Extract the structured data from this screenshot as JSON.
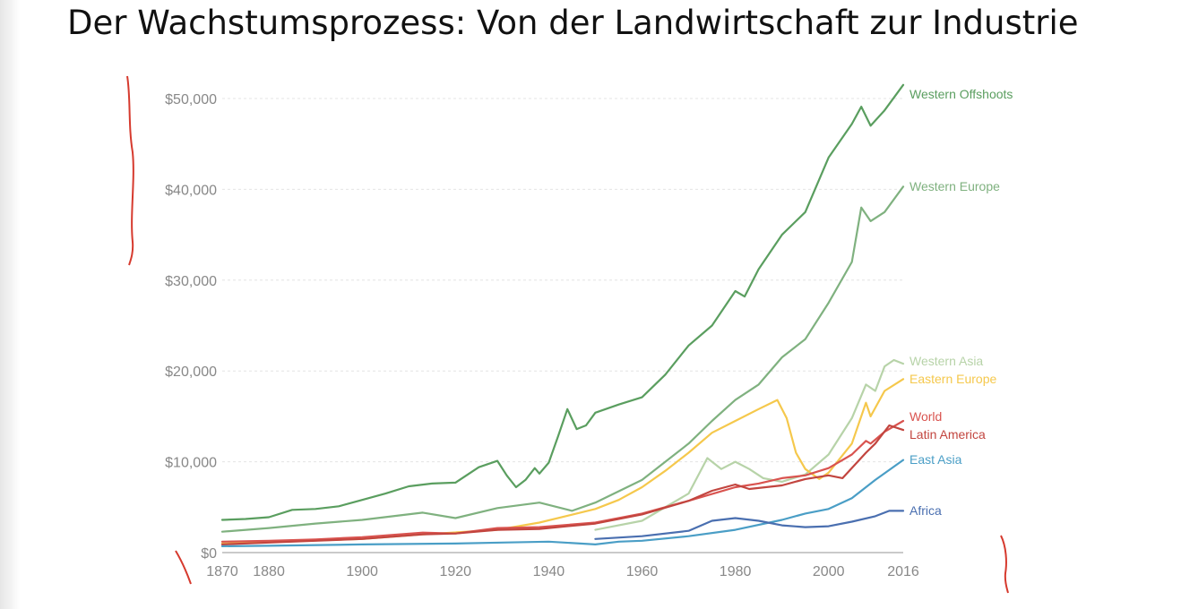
{
  "slide": {
    "title": "Der Wachstumsprozess: Von der Landwirtschaft zur Industrie"
  },
  "chart_data": {
    "type": "line",
    "title": "",
    "xlabel": "",
    "ylabel": "",
    "xlim": [
      1870,
      2016
    ],
    "ylim": [
      0,
      50000
    ],
    "grid": true,
    "legend": "inline labels at right end of each line",
    "x_ticks": [
      "1870",
      "1880",
      "1900",
      "1920",
      "1940",
      "1960",
      "1980",
      "2000",
      "2016"
    ],
    "x_tick_values": [
      1870,
      1880,
      1900,
      1920,
      1940,
      1960,
      1980,
      2000,
      2016
    ],
    "y_ticks": [
      "$0",
      "$10,000",
      "$20,000",
      "$30,000",
      "$40,000",
      "$50,000"
    ],
    "y_tick_values": [
      0,
      10000,
      20000,
      30000,
      40000,
      50000
    ],
    "series": [
      {
        "name": "Western Offshoots",
        "color": "#5a9e5f",
        "points": [
          [
            1870,
            3600
          ],
          [
            1875,
            3700
          ],
          [
            1880,
            3900
          ],
          [
            1885,
            4700
          ],
          [
            1890,
            4800
          ],
          [
            1895,
            5100
          ],
          [
            1900,
            5800
          ],
          [
            1905,
            6500
          ],
          [
            1910,
            7300
          ],
          [
            1915,
            7600
          ],
          [
            1920,
            7700
          ],
          [
            1925,
            9400
          ],
          [
            1929,
            10100
          ],
          [
            1931,
            8500
          ],
          [
            1933,
            7200
          ],
          [
            1935,
            8000
          ],
          [
            1937,
            9300
          ],
          [
            1938,
            8700
          ],
          [
            1940,
            9900
          ],
          [
            1942,
            12800
          ],
          [
            1944,
            15800
          ],
          [
            1946,
            13600
          ],
          [
            1948,
            14000
          ],
          [
            1950,
            15400
          ],
          [
            1955,
            16300
          ],
          [
            1960,
            17100
          ],
          [
            1965,
            19600
          ],
          [
            1970,
            22800
          ],
          [
            1975,
            25000
          ],
          [
            1980,
            28800
          ],
          [
            1982,
            28200
          ],
          [
            1985,
            31200
          ],
          [
            1990,
            35000
          ],
          [
            1995,
            37500
          ],
          [
            2000,
            43500
          ],
          [
            2005,
            47200
          ],
          [
            2007,
            49100
          ],
          [
            2009,
            47000
          ],
          [
            2012,
            48700
          ],
          [
            2016,
            51500
          ]
        ]
      },
      {
        "name": "Western Europe",
        "color": "#7fb17f",
        "points": [
          [
            1870,
            2300
          ],
          [
            1880,
            2700
          ],
          [
            1890,
            3200
          ],
          [
            1900,
            3600
          ],
          [
            1913,
            4400
          ],
          [
            1920,
            3800
          ],
          [
            1929,
            4900
          ],
          [
            1938,
            5500
          ],
          [
            1945,
            4600
          ],
          [
            1950,
            5500
          ],
          [
            1960,
            8000
          ],
          [
            1970,
            12000
          ],
          [
            1975,
            14500
          ],
          [
            1980,
            16800
          ],
          [
            1985,
            18500
          ],
          [
            1990,
            21500
          ],
          [
            1995,
            23500
          ],
          [
            2000,
            27500
          ],
          [
            2005,
            32000
          ],
          [
            2007,
            38000
          ],
          [
            2009,
            36500
          ],
          [
            2012,
            37500
          ],
          [
            2016,
            40300
          ]
        ]
      },
      {
        "name": "Western Asia",
        "color": "#b7d3a8",
        "points": [
          [
            1950,
            2500
          ],
          [
            1960,
            3500
          ],
          [
            1970,
            6500
          ],
          [
            1974,
            10400
          ],
          [
            1977,
            9200
          ],
          [
            1980,
            10000
          ],
          [
            1983,
            9200
          ],
          [
            1986,
            8200
          ],
          [
            1990,
            7800
          ],
          [
            1995,
            8600
          ],
          [
            2000,
            10800
          ],
          [
            2005,
            14800
          ],
          [
            2008,
            18500
          ],
          [
            2010,
            17800
          ],
          [
            2012,
            20500
          ],
          [
            2014,
            21200
          ],
          [
            2016,
            20800
          ]
        ]
      },
      {
        "name": "Eastern Europe",
        "color": "#f5c84c",
        "points": [
          [
            1870,
            1000
          ],
          [
            1900,
            1500
          ],
          [
            1913,
            2000
          ],
          [
            1929,
            2500
          ],
          [
            1938,
            3300
          ],
          [
            1950,
            4800
          ],
          [
            1955,
            5800
          ],
          [
            1960,
            7200
          ],
          [
            1965,
            9000
          ],
          [
            1970,
            11000
          ],
          [
            1975,
            13200
          ],
          [
            1980,
            14500
          ],
          [
            1985,
            15800
          ],
          [
            1989,
            16800
          ],
          [
            1991,
            14800
          ],
          [
            1993,
            11000
          ],
          [
            1995,
            9200
          ],
          [
            1998,
            8100
          ],
          [
            2000,
            8800
          ],
          [
            2005,
            12000
          ],
          [
            2008,
            16500
          ],
          [
            2009,
            15000
          ],
          [
            2012,
            17800
          ],
          [
            2016,
            19100
          ]
        ]
      },
      {
        "name": "World",
        "color": "#d9534f",
        "points": [
          [
            1870,
            1200
          ],
          [
            1880,
            1300
          ],
          [
            1890,
            1450
          ],
          [
            1900,
            1700
          ],
          [
            1913,
            2200
          ],
          [
            1920,
            2100
          ],
          [
            1929,
            2700
          ],
          [
            1938,
            2800
          ],
          [
            1950,
            3300
          ],
          [
            1960,
            4300
          ],
          [
            1970,
            5700
          ],
          [
            1980,
            7200
          ],
          [
            1985,
            7600
          ],
          [
            1990,
            8200
          ],
          [
            1995,
            8500
          ],
          [
            2000,
            9300
          ],
          [
            2005,
            10800
          ],
          [
            2008,
            12300
          ],
          [
            2009,
            12000
          ],
          [
            2012,
            13300
          ],
          [
            2016,
            14500
          ]
        ]
      },
      {
        "name": "Latin America",
        "color": "#c2453f",
        "points": [
          [
            1870,
            900
          ],
          [
            1880,
            1100
          ],
          [
            1890,
            1300
          ],
          [
            1900,
            1500
          ],
          [
            1913,
            2000
          ],
          [
            1920,
            2100
          ],
          [
            1929,
            2500
          ],
          [
            1938,
            2600
          ],
          [
            1950,
            3200
          ],
          [
            1960,
            4200
          ],
          [
            1970,
            5700
          ],
          [
            1975,
            6800
          ],
          [
            1980,
            7500
          ],
          [
            1983,
            7000
          ],
          [
            1990,
            7400
          ],
          [
            1995,
            8100
          ],
          [
            2000,
            8500
          ],
          [
            2003,
            8200
          ],
          [
            2008,
            11000
          ],
          [
            2010,
            12000
          ],
          [
            2013,
            14000
          ],
          [
            2016,
            13500
          ]
        ]
      },
      {
        "name": "East Asia",
        "color": "#4a9ec6",
        "points": [
          [
            1870,
            700
          ],
          [
            1880,
            750
          ],
          [
            1900,
            900
          ],
          [
            1920,
            1000
          ],
          [
            1930,
            1100
          ],
          [
            1940,
            1200
          ],
          [
            1950,
            900
          ],
          [
            1955,
            1200
          ],
          [
            1960,
            1300
          ],
          [
            1970,
            1800
          ],
          [
            1980,
            2500
          ],
          [
            1990,
            3600
          ],
          [
            1995,
            4300
          ],
          [
            2000,
            4800
          ],
          [
            2005,
            6000
          ],
          [
            2010,
            8000
          ],
          [
            2016,
            10200
          ]
        ]
      },
      {
        "name": "Africa",
        "color": "#4a6fb0",
        "points": [
          [
            1950,
            1500
          ],
          [
            1960,
            1800
          ],
          [
            1970,
            2400
          ],
          [
            1975,
            3500
          ],
          [
            1980,
            3800
          ],
          [
            1985,
            3500
          ],
          [
            1990,
            3000
          ],
          [
            1995,
            2800
          ],
          [
            2000,
            2900
          ],
          [
            2005,
            3400
          ],
          [
            2010,
            4000
          ],
          [
            2013,
            4600
          ],
          [
            2016,
            4600
          ]
        ]
      }
    ]
  }
}
